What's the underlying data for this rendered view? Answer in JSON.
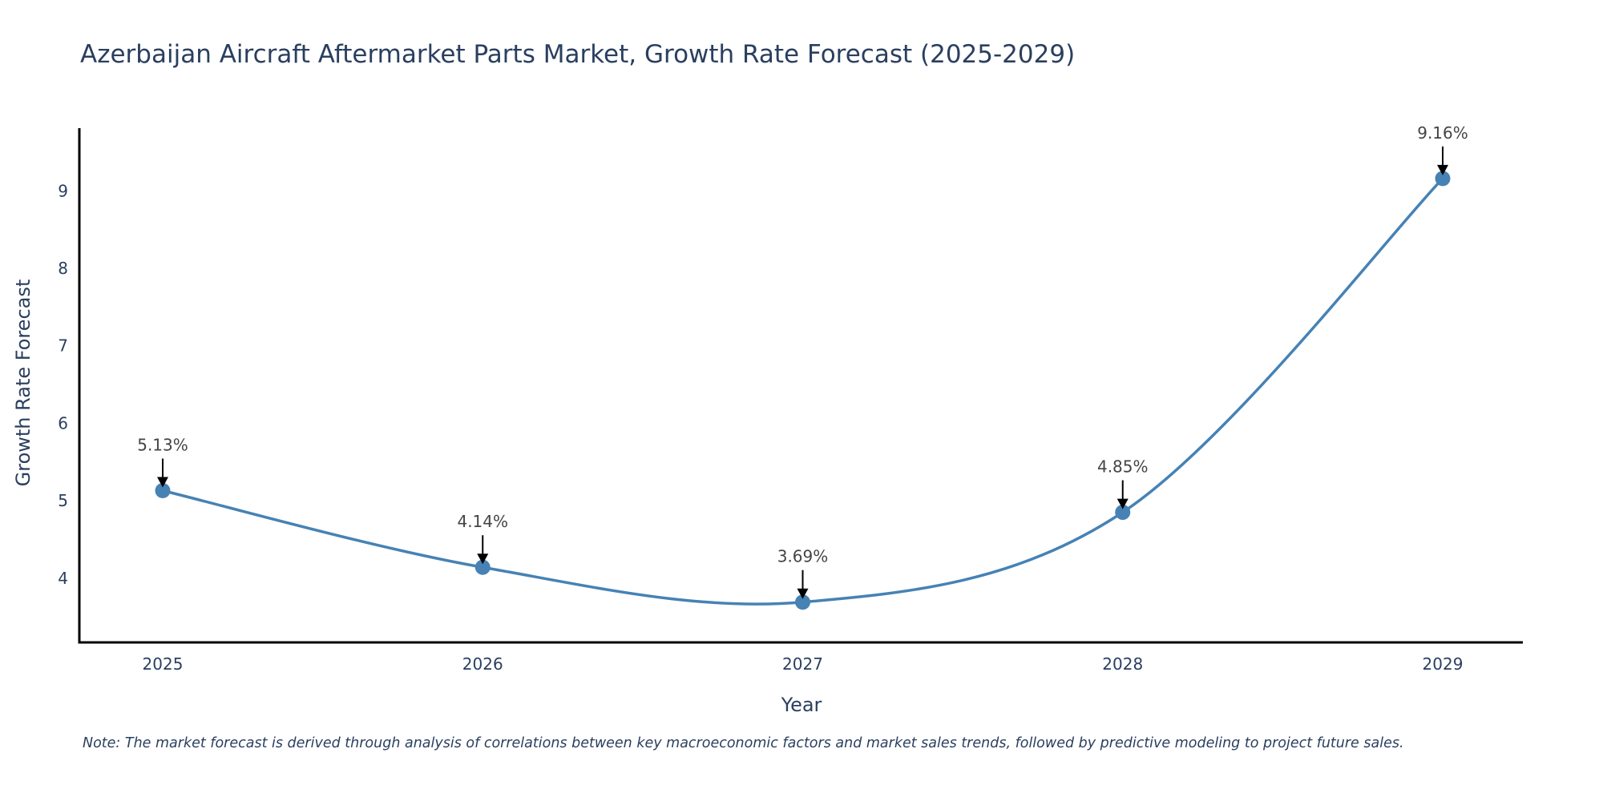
{
  "chart_data": {
    "type": "line",
    "title": "Azerbaijan Aircraft Aftermarket Parts Market, Growth Rate Forecast (2025-2029)",
    "xlabel": "Year",
    "ylabel": "Growth Rate Forecast",
    "categories": [
      "2025",
      "2026",
      "2027",
      "2028",
      "2029"
    ],
    "series": [
      {
        "name": "Growth Rate Forecast",
        "values": [
          5.13,
          4.14,
          3.69,
          4.85,
          9.16
        ],
        "color": "#4682b4"
      }
    ],
    "annotations": [
      "5.13%",
      "4.14%",
      "3.69%",
      "4.85%",
      "9.16%"
    ],
    "yticks": [
      4,
      5,
      6,
      7,
      8,
      9
    ],
    "ylim": [
      3.17,
      9.81
    ],
    "grid": false,
    "line_shape": "spline",
    "note": "Note: The market forecast is derived through analysis of correlations between key macroeconomic factors and market sales trends, followed by predictive modeling to project future sales."
  }
}
